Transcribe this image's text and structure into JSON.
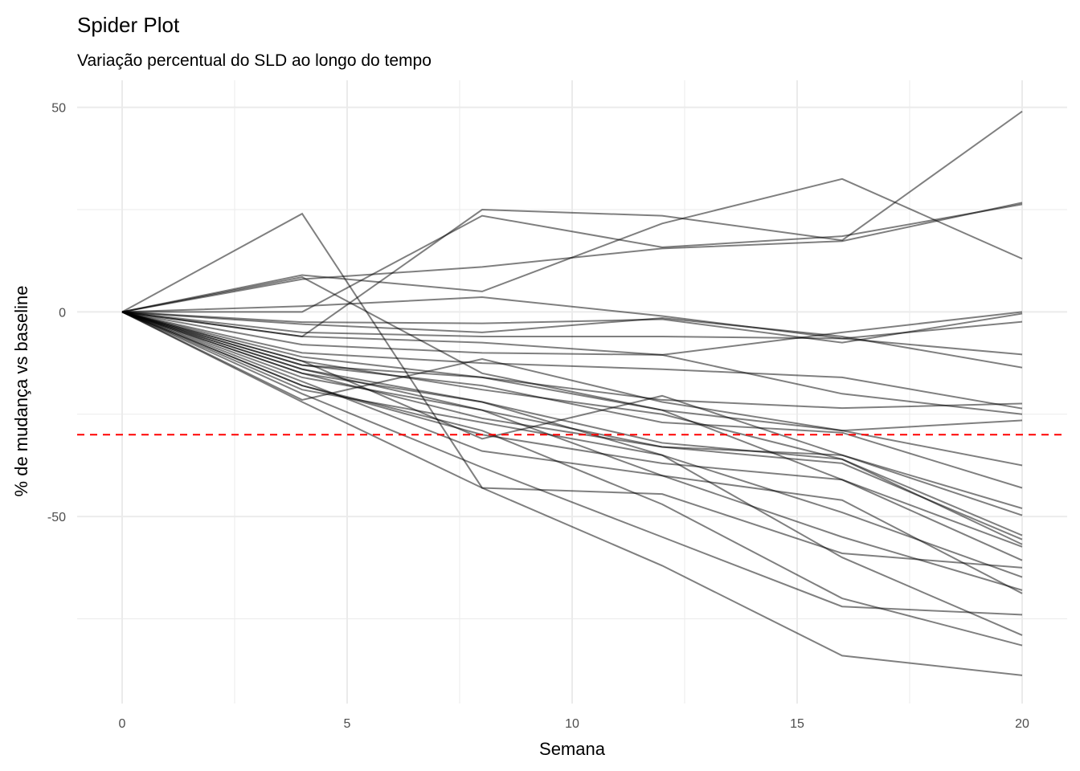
{
  "chart_data": {
    "type": "line",
    "title": "Spider Plot",
    "subtitle": "Variação percentual do SLD ao longo do tempo",
    "xlabel": "Semana",
    "ylabel": "% de mudança vs baseline",
    "xlim": [
      -1,
      21
    ],
    "ylim": [
      -95.7,
      56.6
    ],
    "x_ticks": [
      0,
      5,
      10,
      15,
      20
    ],
    "y_ticks": [
      -50,
      0,
      50
    ],
    "grid": true,
    "legend": "none",
    "line_color": "#000000",
    "reference_line": {
      "y": -30,
      "color": "#ff0000",
      "style": "dashed"
    },
    "x": [
      0,
      4,
      8,
      12,
      16,
      20
    ],
    "series": [
      {
        "values": [
          0,
          24,
          -43,
          -44.5,
          -59,
          -62.5
        ]
      },
      {
        "values": [
          0,
          0,
          23.5,
          15.8,
          18.5,
          26.3
        ]
      },
      {
        "values": [
          0,
          -6,
          25,
          23.5,
          17.5,
          49
        ]
      },
      {
        "values": [
          0,
          9,
          5,
          21.6,
          32.5,
          13
        ]
      },
      {
        "values": [
          0,
          8,
          11,
          15.5,
          17.3,
          26.7
        ]
      },
      {
        "values": [
          0,
          1.4,
          3.6,
          -1,
          -6.5,
          -10.4
        ]
      },
      {
        "values": [
          0,
          -2.5,
          -2.8,
          -1.8,
          -7.5,
          -0.4
        ]
      },
      {
        "values": [
          0,
          -5,
          -6,
          -6,
          -6.5,
          -2.4
        ]
      },
      {
        "values": [
          0,
          -6,
          -7.5,
          -10.5,
          -5,
          0
        ]
      },
      {
        "values": [
          0,
          -3,
          -5,
          -1.5,
          -6,
          -13.6
        ]
      },
      {
        "values": [
          0,
          -10,
          -12.5,
          -14,
          -16,
          -23.6
        ]
      },
      {
        "values": [
          0,
          -8,
          -10,
          -10.5,
          -20,
          -25
        ]
      },
      {
        "values": [
          0,
          -11,
          -16,
          -21.5,
          -23.5,
          -22.4
        ]
      },
      {
        "values": [
          0,
          -21.5,
          -11.5,
          -22,
          -29,
          -26.5
        ]
      },
      {
        "values": [
          0,
          8.5,
          -15,
          -24,
          -29,
          -37.5
        ]
      },
      {
        "values": [
          0,
          -13,
          -18,
          -27,
          -29.5,
          -43
        ]
      },
      {
        "values": [
          0,
          -15,
          -26,
          -33,
          -35,
          -48
        ]
      },
      {
        "values": [
          0,
          -12,
          -31,
          -20.5,
          -35,
          -49.7
        ]
      },
      {
        "values": [
          0,
          -14,
          -22,
          -32,
          -36,
          -54.6
        ]
      },
      {
        "values": [
          0,
          -16,
          -24,
          -33,
          -37,
          -55.6
        ]
      },
      {
        "values": [
          0,
          -12,
          -19,
          -25,
          -36,
          -56.8
        ]
      },
      {
        "values": [
          0,
          -13,
          -16,
          -24,
          -41,
          -57.4
        ]
      },
      {
        "values": [
          0,
          -18,
          -30,
          -37,
          -41,
          -60.7
        ]
      },
      {
        "values": [
          0,
          -19,
          -27,
          -35,
          -49,
          -64.8
        ]
      },
      {
        "values": [
          0,
          -14,
          -24,
          -40,
          -55,
          -68
        ]
      },
      {
        "values": [
          0,
          -17,
          -34,
          -40,
          -46,
          -68.8
        ]
      },
      {
        "values": [
          0,
          -20,
          -38,
          -55,
          -72,
          -74
        ]
      },
      {
        "values": [
          0,
          -22,
          -43,
          -62,
          -84,
          -88.8
        ]
      },
      {
        "values": [
          0,
          -15,
          -22,
          -35,
          -60,
          -79
        ]
      },
      {
        "values": [
          0,
          -18,
          -29,
          -47,
          -70,
          -81.5
        ]
      }
    ]
  }
}
